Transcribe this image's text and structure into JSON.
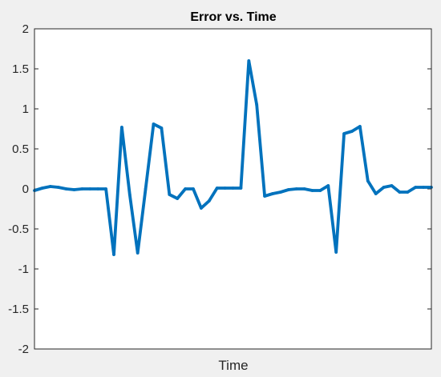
{
  "chart_data": {
    "type": "line",
    "title": "Error vs. Time",
    "xlabel": "Time",
    "ylabel": "",
    "xlim": [
      0,
      50
    ],
    "ylim": [
      -2,
      2
    ],
    "yticks": [
      2,
      1.5,
      1,
      0.5,
      0,
      -0.5,
      -1,
      -1.5,
      -2
    ],
    "ytick_labels": [
      "2",
      "1.5",
      "1",
      "0.5",
      "0",
      "-0.5",
      "-1",
      "-1.5",
      "-2"
    ],
    "grid": false,
    "x": [
      0,
      1,
      2,
      3,
      4,
      5,
      6,
      7,
      8,
      9,
      10,
      11,
      12,
      13,
      14,
      15,
      16,
      17,
      18,
      19,
      20,
      21,
      22,
      23,
      24,
      25,
      26,
      27,
      28,
      29,
      30,
      31,
      32,
      33,
      34,
      35,
      36,
      37,
      38,
      39,
      40,
      41,
      42,
      43,
      44,
      45,
      46,
      47,
      48,
      49,
      50
    ],
    "series": [
      {
        "values": [
          -0.02,
          0.01,
          0.03,
          0.02,
          0.0,
          -0.01,
          0.0,
          0.0,
          0.0,
          0.0,
          -0.82,
          0.77,
          -0.07,
          -0.8,
          0.0,
          0.81,
          0.76,
          -0.07,
          -0.12,
          0.0,
          0.0,
          -0.24,
          -0.15,
          0.01,
          0.01,
          0.01,
          0.01,
          1.6,
          1.05,
          -0.09,
          -0.06,
          -0.04,
          -0.01,
          0.0,
          0.0,
          -0.02,
          -0.02,
          0.04,
          -0.79,
          0.69,
          0.72,
          0.78,
          0.1,
          -0.06,
          0.02,
          0.04,
          -0.04,
          -0.04,
          0.02,
          0.02,
          0.02
        ],
        "color": "#0072bd"
      }
    ]
  },
  "colors": {
    "figure_bg": "#f0f0f0",
    "axes_bg": "#ffffff",
    "axes_edge": "#262626",
    "line": "#0072bd"
  }
}
